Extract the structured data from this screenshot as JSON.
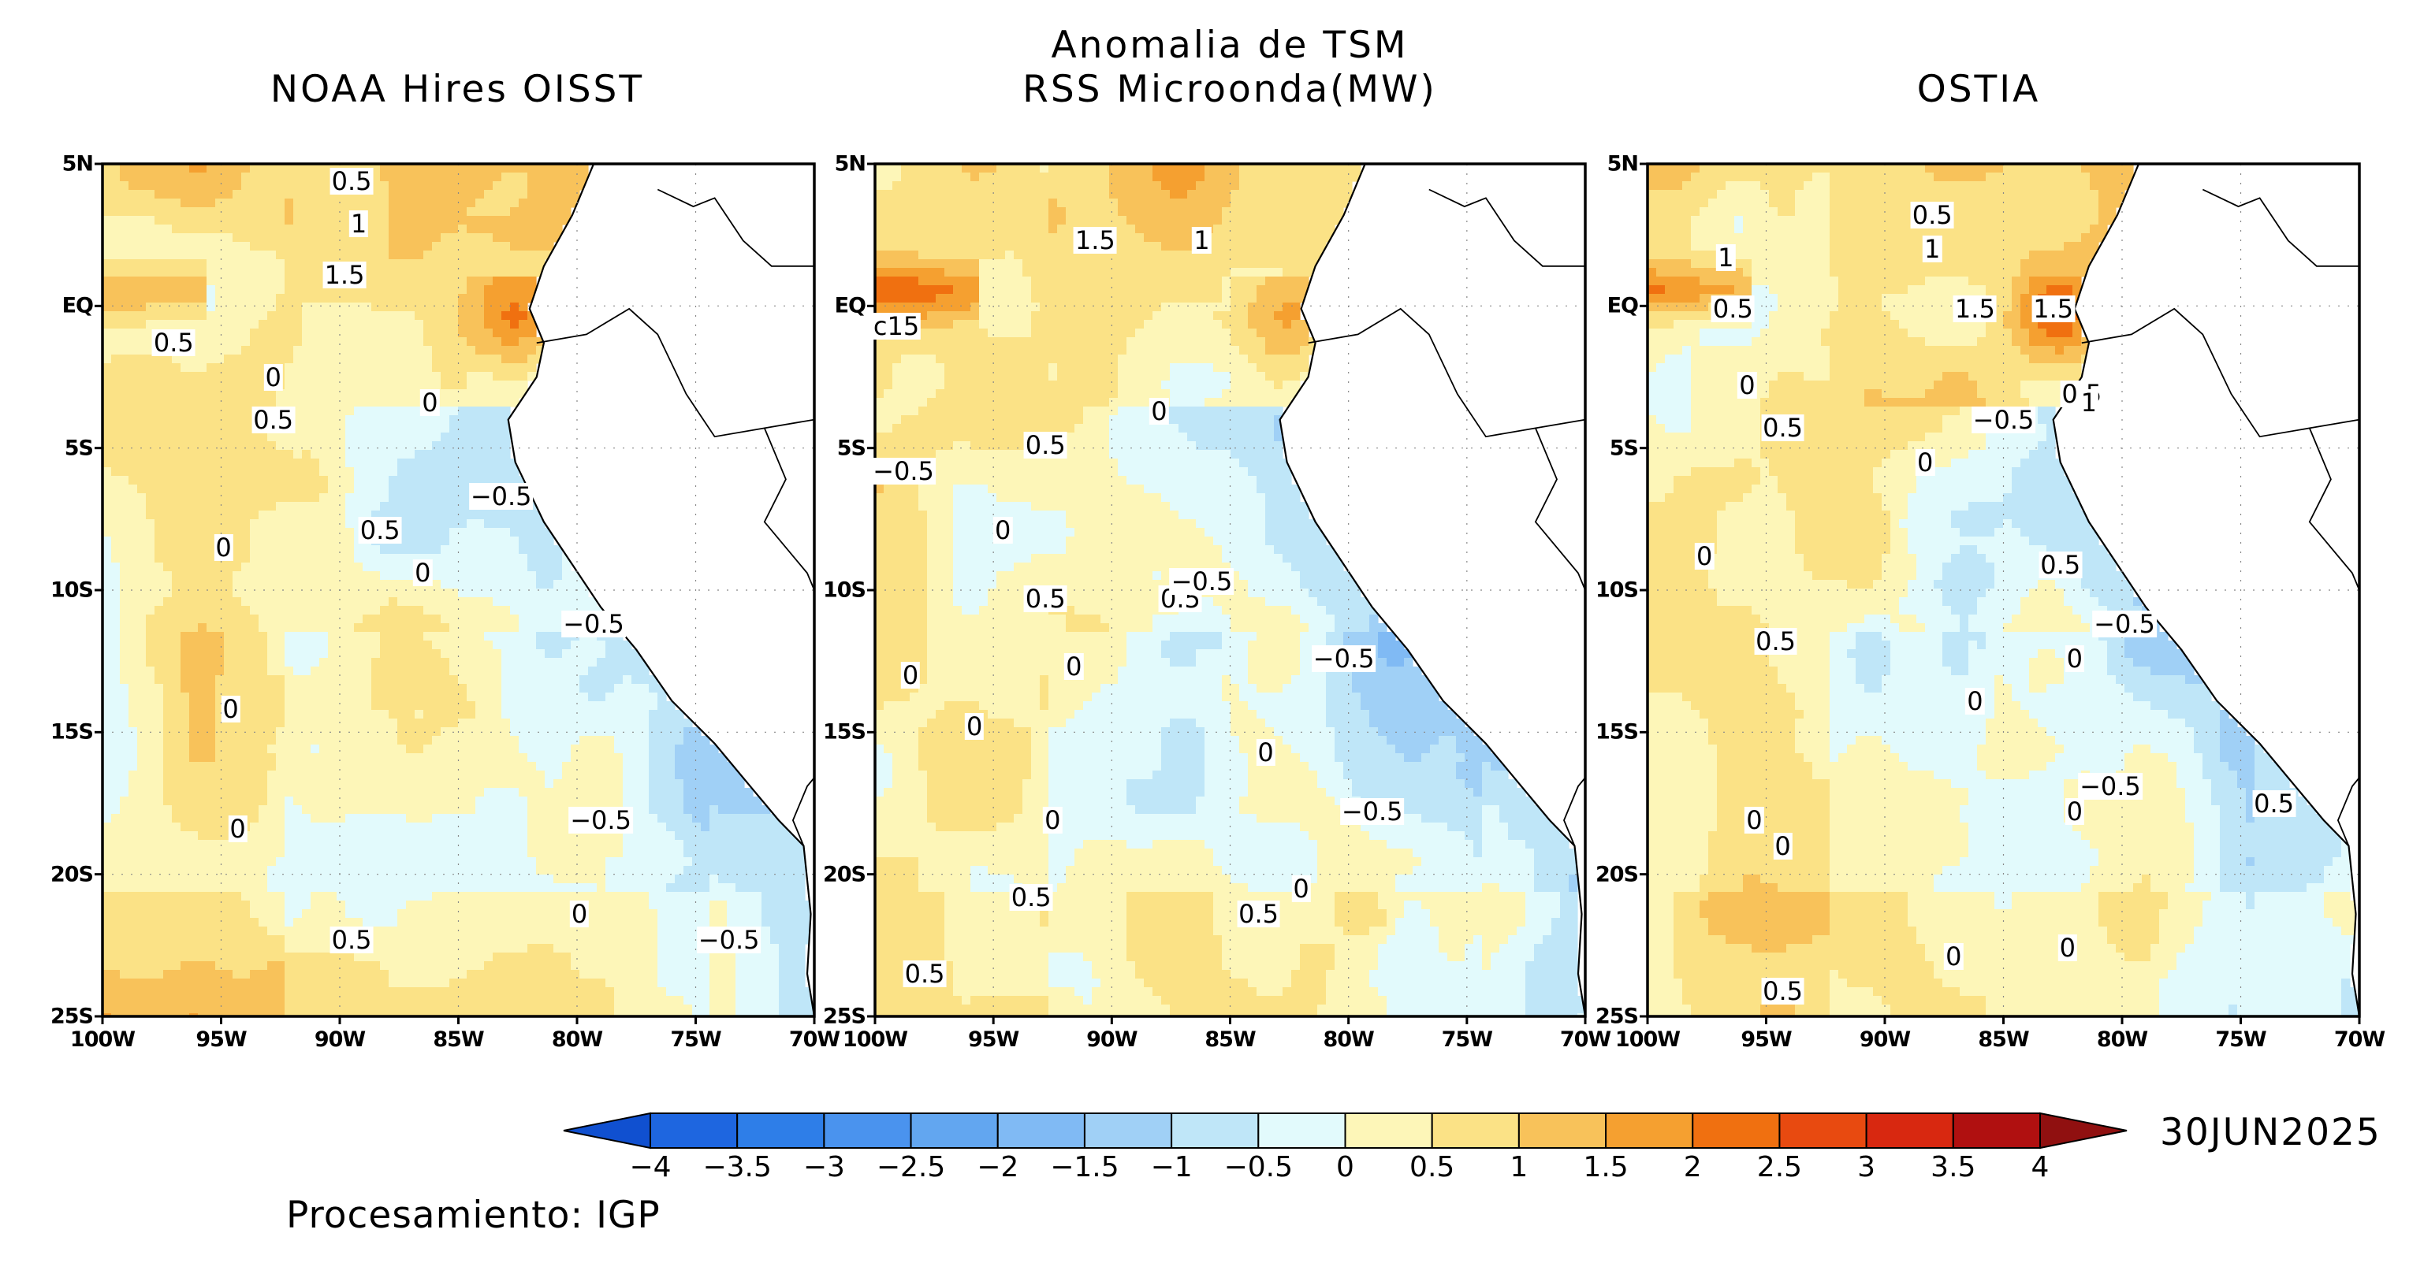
{
  "header": {
    "main_title_line1": "Anomalia de TSM",
    "panel_titles": [
      "NOAA Hires OISST",
      "RSS Microonda(MW)",
      "OSTIA"
    ]
  },
  "axes": {
    "lat_labels": [
      "5N",
      "EQ",
      "5S",
      "10S",
      "15S",
      "20S",
      "25S"
    ],
    "lon_labels": [
      "100W",
      "95W",
      "90W",
      "85W",
      "80W",
      "75W",
      "70W"
    ]
  },
  "colorbar": {
    "labels": [
      "-4",
      "-3.5",
      "-3",
      "-2.5",
      "-2",
      "-1.5",
      "-1",
      "-0.5",
      "0",
      "0.5",
      "1",
      "1.5",
      "2",
      "2.5",
      "3",
      "3.5",
      "4"
    ],
    "colors": [
      "#1e66e0",
      "#2e7ee8",
      "#4a93ee",
      "#62a6f0",
      "#80baf4",
      "#a0d0f6",
      "#bfe6f8",
      "#e2fafc",
      "#fdf6b8",
      "#fbe286",
      "#f8c25a",
      "#f5a030",
      "#f07010",
      "#e84a10",
      "#d82810",
      "#b01010"
    ],
    "low_color": "#1050d0",
    "high_color": "#901010"
  },
  "footer": {
    "date": "30JUN2025",
    "credit": "Procesamiento: IGP"
  },
  "contour_labels": {
    "noaa": [
      "0.5",
      "1",
      "1.5",
      "0.5",
      "0",
      "0.5",
      "0",
      "-0.5",
      "0.5",
      "0",
      "0",
      "-0.5",
      "0",
      "0",
      "-0.5",
      "0",
      "0.5",
      "-0.5"
    ],
    "rss": [
      "1.5",
      "1",
      "c15",
      "0",
      "0.5",
      "-0.5",
      "0",
      "0.5",
      "0.5",
      "-0.5",
      "0",
      "0",
      "0",
      "-0.5",
      "0",
      "0",
      "0.5",
      "0.5",
      "0.5",
      "0",
      "-0.5"
    ],
    "ostia": [
      "0.5",
      "1",
      "1",
      "1.5",
      "1.5",
      "0.5",
      "0.5",
      "-0.5",
      "0.5",
      "1",
      "0",
      "0",
      "0",
      "0.5",
      "0.5",
      "-0.5",
      "0",
      "0",
      "-0.5",
      "0",
      "0",
      "0",
      "0.5",
      "0",
      "0.5",
      "0"
    ]
  }
}
